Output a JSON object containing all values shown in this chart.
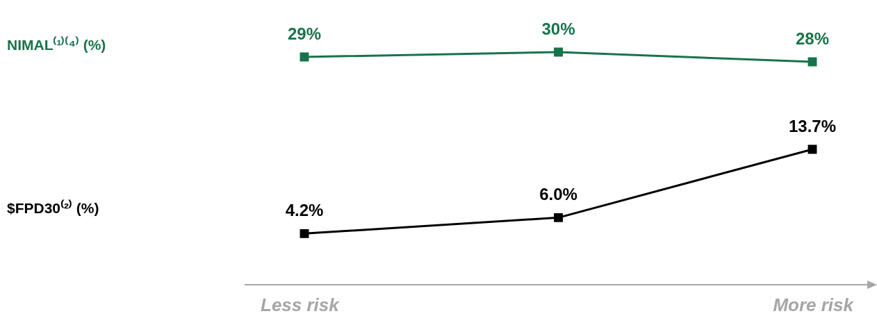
{
  "chart_data": [
    {
      "type": "line",
      "categories": [
        null,
        null,
        null
      ],
      "series": [
        {
          "name": "NIMAL⁽¹⁾⁽⁴⁾ (%)",
          "color": "#17744a",
          "values": [
            29,
            30,
            28
          ],
          "value_labels": [
            "29%",
            "30%",
            "28%"
          ]
        }
      ],
      "tick_labels": false,
      "legend": false,
      "marker": "square",
      "line_style": "solid"
    },
    {
      "type": "line",
      "categories": [
        null,
        null,
        null
      ],
      "series": [
        {
          "name": "$FPD30⁽²⁾ (%)",
          "color": "#000000",
          "values": [
            4.2,
            6.0,
            13.7
          ],
          "value_labels": [
            "4.2%",
            "6.0%",
            "13.7%"
          ]
        }
      ],
      "tick_labels": false,
      "legend": false,
      "marker": "square",
      "line_style": "solid",
      "annotations": [
        "Less risk",
        "More risk"
      ]
    }
  ]
}
